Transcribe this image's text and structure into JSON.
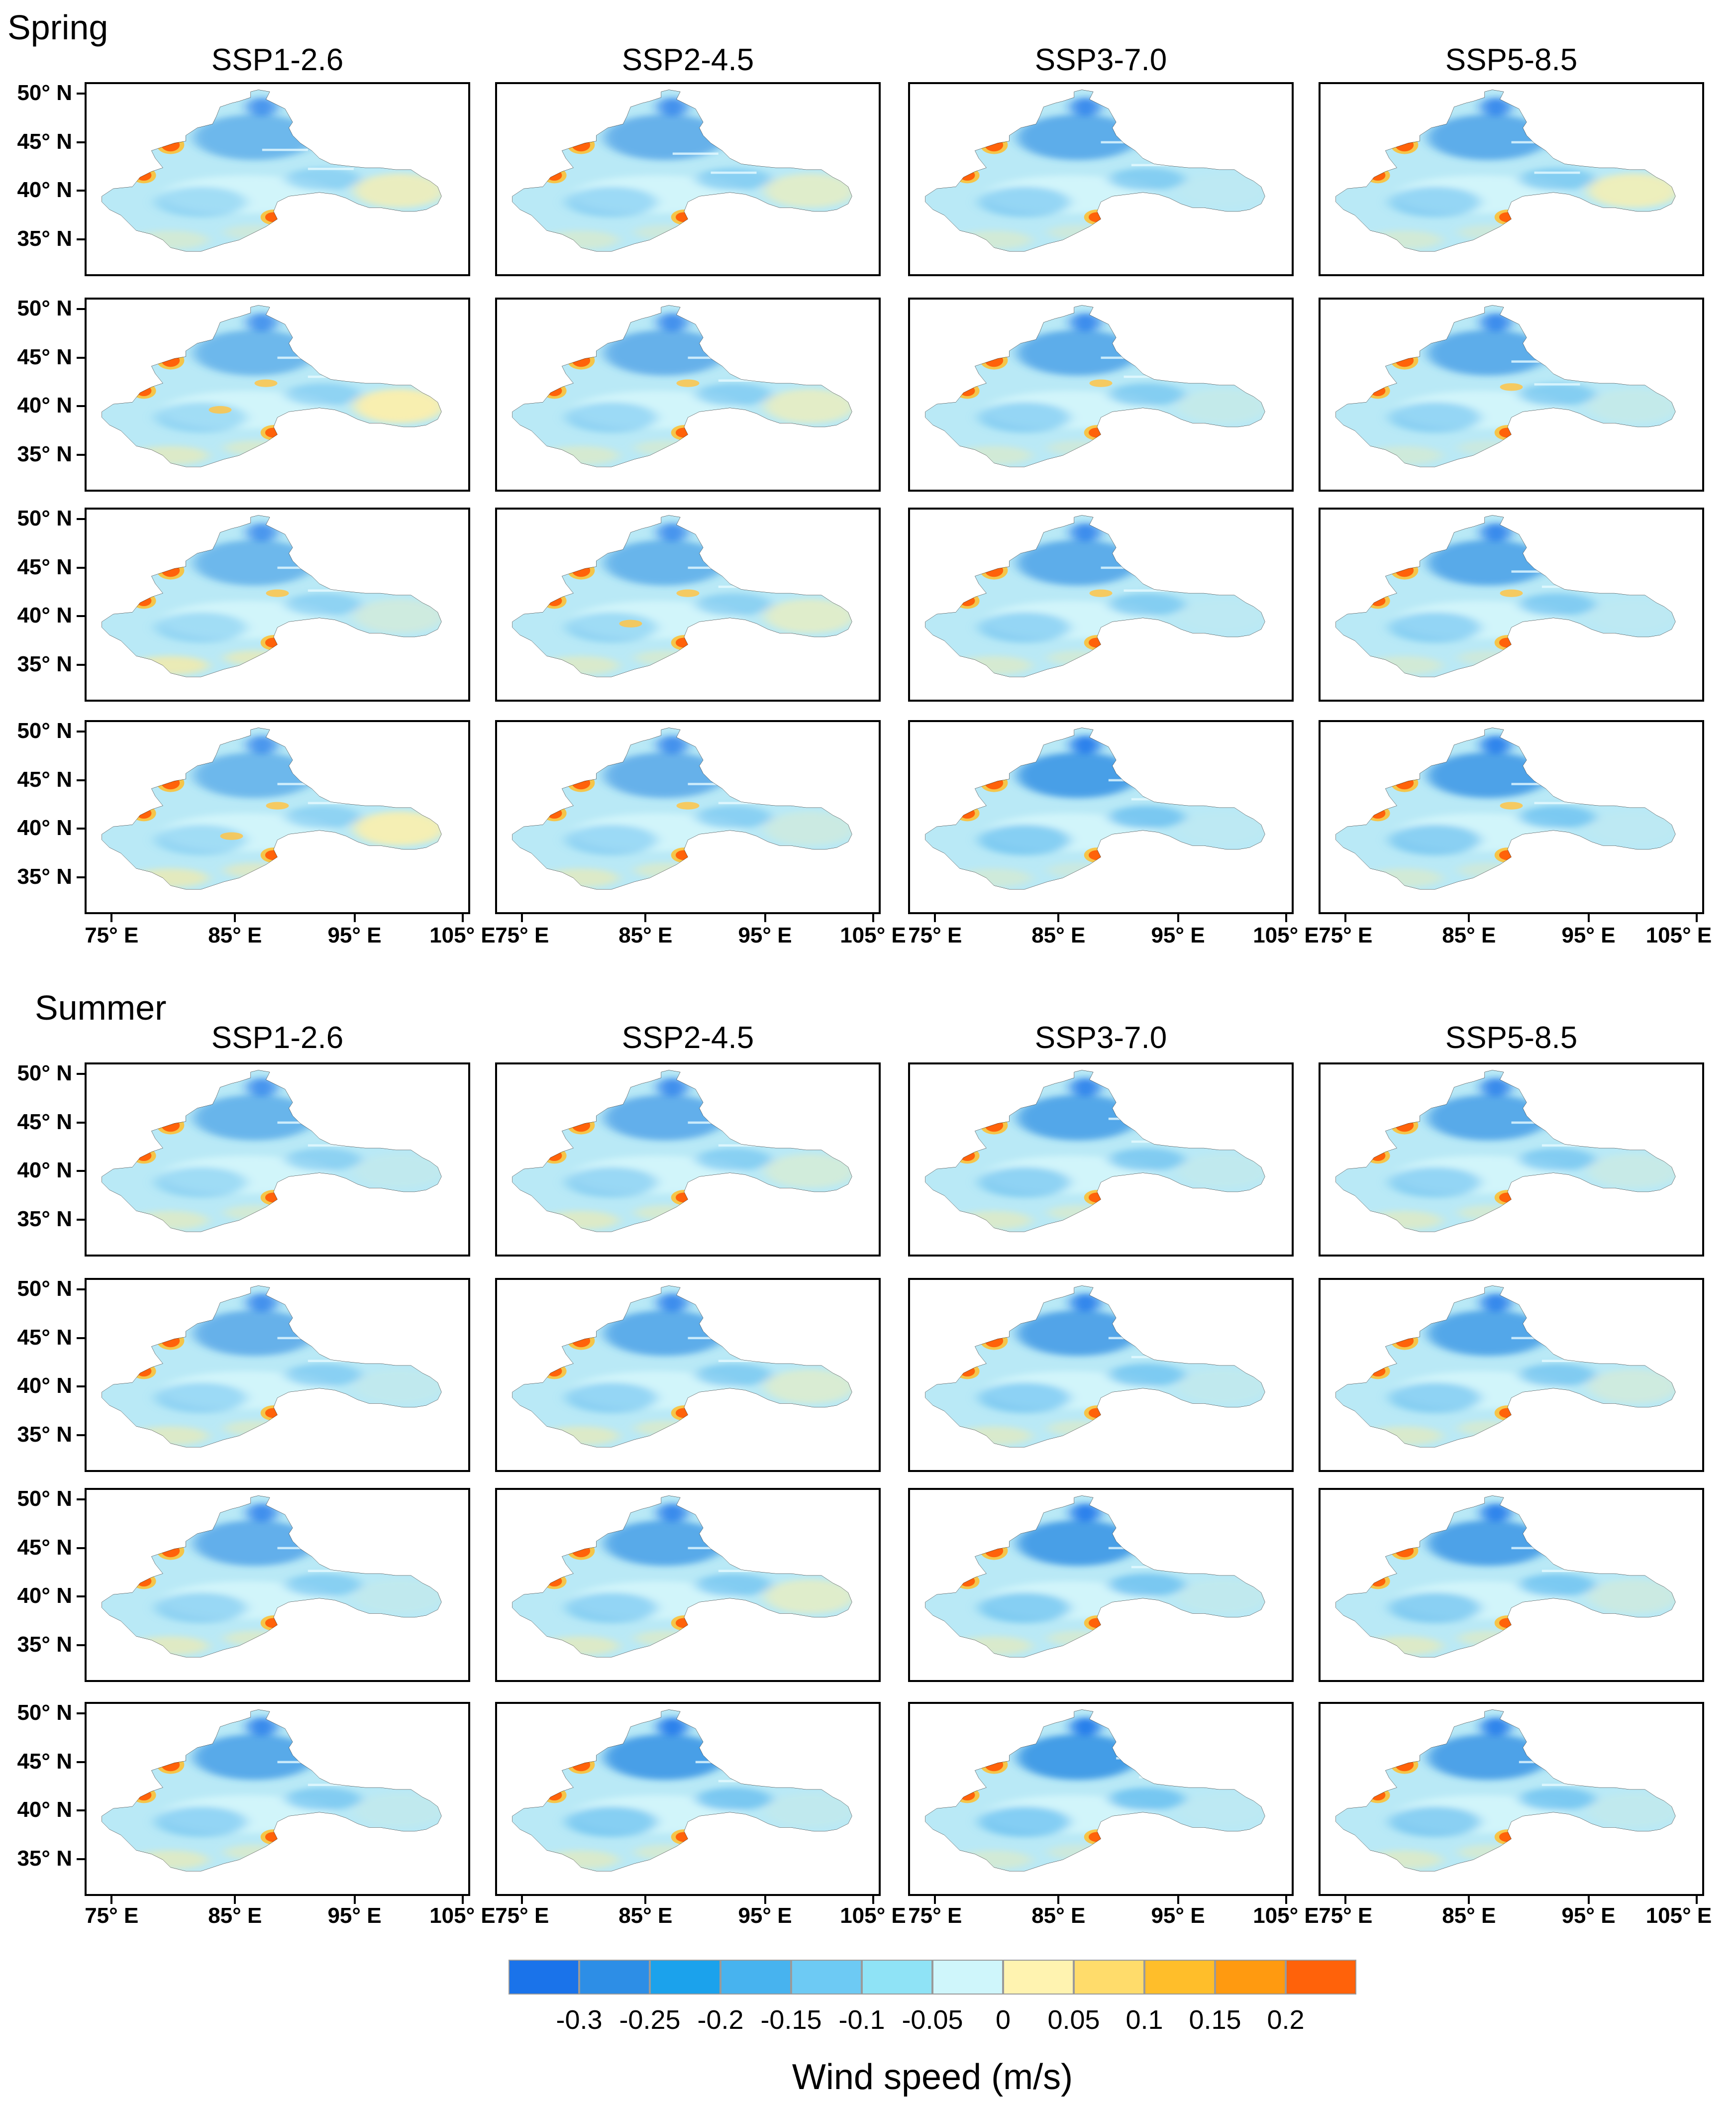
{
  "sections": [
    {
      "title": "Spring",
      "panel_rows": [
        [
          {
            "lobes": [
              [
                0.44,
                0.58
              ],
              [
                0.34,
                0.46
              ]
            ],
            "blotches": [],
            "east_warm": 0.7,
            "south_warm": 0.35,
            "north_blue": 0.5
          },
          {
            "lobes": [
              [
                0.46,
                0.56
              ],
              [
                0.36,
                0.46
              ]
            ],
            "blotches": [],
            "east_warm": 0.55,
            "south_warm": 0.35,
            "north_blue": 0.6
          },
          {
            "lobes": [
              [
                0.42,
                0.58
              ],
              [
                0.3,
                0.5
              ]
            ],
            "blotches": [],
            "east_warm": 0.05,
            "south_warm": 0.35,
            "north_blue": 0.7
          },
          {
            "lobes": [
              [
                0.46,
                0.56
              ],
              [
                0.3,
                0.5
              ]
            ],
            "blotches": [],
            "east_warm": 0.75,
            "south_warm": 0.35,
            "north_blue": 0.7
          }
        ],
        [
          {
            "lobes": [
              [
                0.4,
                0.58
              ],
              [
                0.3,
                0.5
              ]
            ],
            "blotches": [
              [
                0.47,
                0.44
              ],
              [
                0.35,
                0.58
              ]
            ],
            "east_warm": 0.9,
            "south_warm": 0.5,
            "north_blue": 0.5
          },
          {
            "lobes": [
              [
                0.42,
                0.58
              ],
              [
                0.3,
                0.5
              ]
            ],
            "blotches": [
              [
                0.5,
                0.44
              ]
            ],
            "east_warm": 0.6,
            "south_warm": 0.4,
            "north_blue": 0.6
          },
          {
            "lobes": [
              [
                0.4,
                0.56
              ],
              [
                0.3,
                0.5
              ]
            ],
            "blotches": [
              [
                0.5,
                0.44
              ]
            ],
            "east_warm": 0.15,
            "south_warm": 0.35,
            "north_blue": 0.7
          },
          {
            "lobes": [
              [
                0.44,
                0.56
              ],
              [
                0.32,
                0.5
              ]
            ],
            "blotches": [
              [
                0.5,
                0.46
              ]
            ],
            "east_warm": 0.15,
            "south_warm": 0.3,
            "north_blue": 0.7
          }
        ],
        [
          {
            "lobes": [
              [
                0.42,
                0.58
              ],
              [
                0.3,
                0.5
              ]
            ],
            "blotches": [
              [
                0.5,
                0.44
              ]
            ],
            "east_warm": 0.3,
            "south_warm": 0.7,
            "north_blue": 0.5
          },
          {
            "lobes": [
              [
                0.4,
                0.58
              ],
              [
                0.3,
                0.5
              ]
            ],
            "blotches": [
              [
                0.5,
                0.44
              ],
              [
                0.35,
                0.6
              ]
            ],
            "east_warm": 0.55,
            "south_warm": 0.45,
            "north_blue": 0.55
          },
          {
            "lobes": [
              [
                0.42,
                0.56
              ],
              [
                0.3,
                0.5
              ]
            ],
            "blotches": [
              [
                0.5,
                0.44
              ]
            ],
            "east_warm": 0.05,
            "south_warm": 0.4,
            "north_blue": 0.7
          },
          {
            "lobes": [
              [
                0.4,
                0.58
              ],
              [
                0.32,
                0.5
              ]
            ],
            "blotches": [
              [
                0.5,
                0.44
              ]
            ],
            "east_warm": 0.05,
            "south_warm": 0.35,
            "north_blue": 0.75
          }
        ],
        [
          {
            "lobes": [
              [
                0.42,
                0.58
              ],
              [
                0.32,
                0.5
              ]
            ],
            "blotches": [
              [
                0.5,
                0.44
              ],
              [
                0.38,
                0.6
              ]
            ],
            "east_warm": 0.85,
            "south_warm": 0.6,
            "north_blue": 0.5
          },
          {
            "lobes": [
              [
                0.42,
                0.58
              ],
              [
                0.32,
                0.5
              ]
            ],
            "blotches": [
              [
                0.5,
                0.44
              ]
            ],
            "east_warm": 0.25,
            "south_warm": 0.5,
            "north_blue": 0.6
          },
          {
            "lobes": [
              [
                0.4,
                0.58
              ],
              [
                0.3,
                0.52
              ]
            ],
            "blotches": [],
            "east_warm": 0.05,
            "south_warm": 0.3,
            "north_blue": 0.95
          },
          {
            "lobes": [
              [
                0.42,
                0.56
              ],
              [
                0.32,
                0.5
              ]
            ],
            "blotches": [
              [
                0.5,
                0.44
              ]
            ],
            "east_warm": 0.05,
            "south_warm": 0.35,
            "north_blue": 0.9
          }
        ]
      ]
    },
    {
      "title": "Summer",
      "panel_rows": [
        [
          {
            "lobes": [
              [
                0.42,
                0.58
              ],
              [
                0.3,
                0.5
              ]
            ],
            "blotches": [],
            "east_warm": 0.1,
            "south_warm": 0.45,
            "north_blue": 0.55
          },
          {
            "lobes": [
              [
                0.42,
                0.58
              ],
              [
                0.3,
                0.5
              ]
            ],
            "blotches": [],
            "east_warm": 0.35,
            "south_warm": 0.5,
            "north_blue": 0.65
          },
          {
            "lobes": [
              [
                0.4,
                0.58
              ],
              [
                0.28,
                0.52
              ]
            ],
            "blotches": [],
            "east_warm": 0.1,
            "south_warm": 0.45,
            "north_blue": 0.8
          },
          {
            "lobes": [
              [
                0.42,
                0.58
              ],
              [
                0.3,
                0.5
              ]
            ],
            "blotches": [],
            "east_warm": 0.2,
            "south_warm": 0.45,
            "north_blue": 0.75
          }
        ],
        [
          {
            "lobes": [
              [
                0.42,
                0.58
              ],
              [
                0.3,
                0.5
              ]
            ],
            "blotches": [],
            "east_warm": 0.1,
            "south_warm": 0.5,
            "north_blue": 0.6
          },
          {
            "lobes": [
              [
                0.42,
                0.58
              ],
              [
                0.3,
                0.5
              ]
            ],
            "blotches": [],
            "east_warm": 0.45,
            "south_warm": 0.5,
            "north_blue": 0.7
          },
          {
            "lobes": [
              [
                0.4,
                0.58
              ],
              [
                0.3,
                0.52
              ]
            ],
            "blotches": [],
            "east_warm": 0.1,
            "south_warm": 0.45,
            "north_blue": 0.85
          },
          {
            "lobes": [
              [
                0.42,
                0.58
              ],
              [
                0.3,
                0.5
              ]
            ],
            "blotches": [],
            "east_warm": 0.3,
            "south_warm": 0.45,
            "north_blue": 0.8
          }
        ],
        [
          {
            "lobes": [
              [
                0.42,
                0.58
              ],
              [
                0.3,
                0.5
              ]
            ],
            "blotches": [],
            "east_warm": 0.1,
            "south_warm": 0.55,
            "north_blue": 0.65
          },
          {
            "lobes": [
              [
                0.42,
                0.58
              ],
              [
                0.3,
                0.5
              ]
            ],
            "blotches": [],
            "east_warm": 0.55,
            "south_warm": 0.5,
            "north_blue": 0.75
          },
          {
            "lobes": [
              [
                0.4,
                0.58
              ],
              [
                0.3,
                0.52
              ]
            ],
            "blotches": [],
            "east_warm": 0.1,
            "south_warm": 0.45,
            "north_blue": 0.95
          },
          {
            "lobes": [
              [
                0.42,
                0.58
              ],
              [
                0.3,
                0.5
              ]
            ],
            "blotches": [],
            "east_warm": 0.25,
            "south_warm": 0.5,
            "north_blue": 0.9
          }
        ],
        [
          {
            "lobes": [
              [
                0.42,
                0.58
              ],
              [
                0.3,
                0.5
              ]
            ],
            "blotches": [],
            "east_warm": 0.1,
            "south_warm": 0.5,
            "north_blue": 0.75
          },
          {
            "lobes": [
              [
                0.4,
                0.58
              ],
              [
                0.3,
                0.52
              ]
            ],
            "blotches": [],
            "east_warm": 0.1,
            "south_warm": 0.45,
            "north_blue": 0.95
          },
          {
            "lobes": [
              [
                0.38,
                0.6
              ],
              [
                0.28,
                0.54
              ]
            ],
            "blotches": [],
            "east_warm": 0.05,
            "south_warm": 0.35,
            "north_blue": 1.0
          },
          {
            "lobes": [
              [
                0.42,
                0.58
              ],
              [
                0.3,
                0.52
              ]
            ],
            "blotches": [],
            "east_warm": 0.1,
            "south_warm": 0.45,
            "north_blue": 0.9
          }
        ]
      ]
    }
  ],
  "scenarios": [
    "SSP1-2.6",
    "SSP2-4.5",
    "SSP3-7.0",
    "SSP5-8.5"
  ],
  "lat_ticks": [
    "50° N",
    "45° N",
    "40° N",
    "35° N"
  ],
  "lon_ticks": [
    "75° E",
    "85° E",
    "95° E",
    "105° E"
  ],
  "colorbar": {
    "title": "Wind speed (m/s)",
    "colors": [
      "#1a73ea",
      "#2d8ee6",
      "#1ba2ec",
      "#47b3ef",
      "#6dcaf4",
      "#8fe3f6",
      "#cff6fb",
      "#fff3b0",
      "#ffdc6b",
      "#ffbe2a",
      "#ff9a10",
      "#ff620a"
    ],
    "labels": [
      "-0.3",
      "-0.25",
      "-0.2",
      "-0.15",
      "-0.1",
      "-0.05",
      "0",
      "0.05",
      "0.1",
      "0.15",
      "0.2"
    ]
  }
}
